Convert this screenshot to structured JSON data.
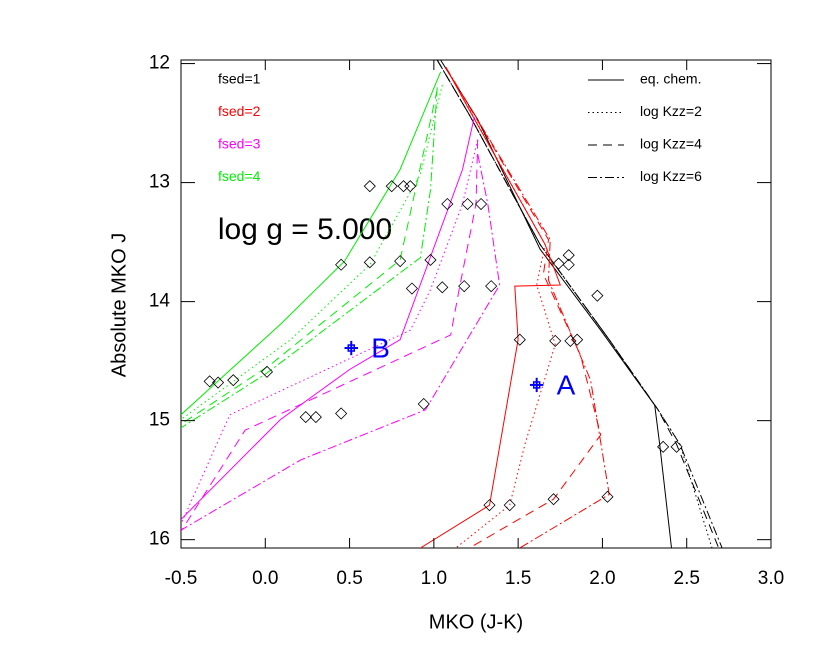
{
  "chart_data": {
    "type": "line",
    "x_label": "MKO (J-K)",
    "y_label": "Absolute MKO J",
    "annotation": "log g = 5.000",
    "xlim": [
      -0.5,
      3.0
    ],
    "ylim": [
      11.97,
      16.07
    ],
    "y_inverted": true,
    "xticks": [
      -0.5,
      {
        "value": 0,
        "label": "0.0"
      },
      0.5,
      {
        "value": 1,
        "label": "1.0"
      },
      1.5,
      {
        "value": 2,
        "label": "2.0"
      },
      2.5,
      {
        "value": 3,
        "label": "3.0"
      }
    ],
    "yticks": [
      12,
      13,
      14,
      15,
      16
    ],
    "color_legend": [
      {
        "label": "fsed=1",
        "color": "#000000"
      },
      {
        "label": "fsed=2",
        "color": "#ff0000"
      },
      {
        "label": "fsed=3",
        "color": "#ff00ff"
      },
      {
        "label": "fsed=4",
        "color": "#00ee00"
      }
    ],
    "style_legend": [
      {
        "label": "eq. chem.",
        "dash": "solid"
      },
      {
        "label": "log Kzz=2",
        "dash": "dotted"
      },
      {
        "label": "log Kzz=4",
        "dash": "dashed"
      },
      {
        "label": "log Kzz=6",
        "dash": "dashdot"
      }
    ],
    "series": [
      {
        "color": "#000000",
        "dash": "solid",
        "x": [
          1.04,
          1.26,
          1.63,
          1.99,
          2.31,
          2.34,
          2.41
        ],
        "y": [
          11.97,
          12.47,
          13.56,
          14.24,
          14.87,
          15.2,
          16.07
        ]
      },
      {
        "color": "#000000",
        "dash": "dotted",
        "x": [
          1.02,
          1.21,
          1.63,
          2.04,
          2.33,
          2.46,
          2.65
        ],
        "y": [
          11.97,
          12.43,
          13.52,
          14.32,
          14.91,
          15.2,
          16.07
        ]
      },
      {
        "color": "#000000",
        "dash": "dashed",
        "x": [
          1.02,
          1.21,
          1.63,
          2.04,
          2.33,
          2.44,
          2.69
        ],
        "y": [
          11.97,
          12.43,
          13.52,
          14.32,
          14.91,
          15.2,
          16.07
        ]
      },
      {
        "color": "#000000",
        "dash": "dashdot",
        "x": [
          1.02,
          1.21,
          1.63,
          2.04,
          2.33,
          2.46,
          2.71
        ],
        "y": [
          11.97,
          12.43,
          13.52,
          14.32,
          14.91,
          15.2,
          16.07
        ]
      },
      {
        "color": "#ff0000",
        "dash": "solid",
        "x": [
          1.07,
          1.21,
          1.66,
          1.75,
          1.48,
          1.5,
          1.33,
          0.92
        ],
        "y": [
          12.03,
          12.39,
          13.52,
          13.86,
          13.87,
          14.32,
          15.71,
          16.07
        ]
      },
      {
        "color": "#ff0000",
        "dash": "dotted",
        "x": [
          1.07,
          1.66,
          1.61,
          1.72,
          1.54,
          1.45,
          1.13
        ],
        "y": [
          12.03,
          13.52,
          13.86,
          14.36,
          15.2,
          15.71,
          16.07
        ]
      },
      {
        "color": "#ff0000",
        "dash": "dashed",
        "x": [
          1.07,
          1.68,
          1.65,
          1.87,
          1.99,
          1.71,
          1.21
        ],
        "y": [
          12.03,
          13.48,
          13.77,
          14.45,
          15.12,
          15.66,
          16.07
        ]
      },
      {
        "color": "#ff0000",
        "dash": "dashdot",
        "x": [
          1.07,
          1.69,
          1.68,
          1.93,
          2.04,
          1.51
        ],
        "y": [
          12.03,
          13.48,
          13.82,
          14.66,
          15.62,
          16.07
        ]
      },
      {
        "color": "#ff00ff",
        "dash": "solid",
        "x": [
          1.24,
          1.17,
          0.8,
          0.5,
          0.09,
          -0.5
        ],
        "y": [
          12.45,
          12.89,
          14.32,
          14.57,
          14.99,
          15.83
        ]
      },
      {
        "color": "#ff00ff",
        "dash": "dotted",
        "x": [
          1.26,
          1.17,
          0.98,
          0.86,
          -0.21,
          -0.5
        ],
        "y": [
          12.64,
          13.18,
          13.9,
          14.24,
          14.95,
          15.87
        ]
      },
      {
        "color": "#ff00ff",
        "dash": "dashed",
        "x": [
          1.26,
          1.25,
          1.15,
          1.1,
          -0.12,
          -0.5
        ],
        "y": [
          12.64,
          13.18,
          13.9,
          14.28,
          15.08,
          15.93
        ]
      },
      {
        "color": "#ff00ff",
        "dash": "dashdot",
        "x": [
          1.26,
          1.32,
          1.39,
          0.95,
          0.21,
          -0.5
        ],
        "y": [
          12.76,
          13.18,
          13.86,
          14.91,
          15.33,
          15.92
        ]
      },
      {
        "color": "#00ee00",
        "dash": "solid",
        "x": [
          1.04,
          0.8,
          0.47,
          0.09,
          -0.5
        ],
        "y": [
          12.07,
          12.89,
          13.66,
          14.19,
          14.95
        ]
      },
      {
        "color": "#00ee00",
        "dash": "dotted",
        "x": [
          1.05,
          0.92,
          0.62,
          0.15,
          -0.5
        ],
        "y": [
          12.18,
          12.93,
          13.69,
          14.32,
          14.99
        ]
      },
      {
        "color": "#00ee00",
        "dash": "dashed",
        "x": [
          1.02,
          0.8,
          0.03,
          -0.5
        ],
        "y": [
          12.22,
          13.65,
          14.53,
          15.03
        ]
      },
      {
        "color": "#00ee00",
        "dash": "dashdot",
        "x": [
          1.02,
          0.98,
          0.92,
          0.0,
          -0.5
        ],
        "y": [
          12.2,
          13.06,
          13.63,
          14.61,
          15.06
        ]
      }
    ],
    "diamonds": {
      "x": [
        0.62,
        0.75,
        0.82,
        0.86,
        1.08,
        1.2,
        1.28,
        0.45,
        0.62,
        0.8,
        0.98,
        0.87,
        1.05,
        1.18,
        1.34,
        1.8,
        1.74,
        1.8,
        1.97,
        1.51,
        1.72,
        1.81,
        1.85,
        -0.33,
        -0.28,
        -0.19,
        0.01,
        0.24,
        0.3,
        0.45,
        0.94,
        1.33,
        1.45,
        1.71,
        2.03,
        2.36,
        2.44
      ],
      "y": [
        13.03,
        13.03,
        13.03,
        13.03,
        13.18,
        13.18,
        13.18,
        13.69,
        13.67,
        13.66,
        13.65,
        13.89,
        13.88,
        13.87,
        13.87,
        13.61,
        13.68,
        13.69,
        13.95,
        14.32,
        14.33,
        14.33,
        14.32,
        14.67,
        14.68,
        14.66,
        14.59,
        14.97,
        14.97,
        14.94,
        14.86,
        15.71,
        15.71,
        15.66,
        15.64,
        15.22,
        15.22
      ]
    },
    "observations": [
      {
        "label": "B",
        "x": 0.51,
        "y": 14.39,
        "xerr": 0.04,
        "yerr": 0.06,
        "color": "#0000ff"
      },
      {
        "label": "A",
        "x": 1.61,
        "y": 14.7,
        "xerr": 0.04,
        "yerr": 0.06,
        "color": "#0000ff"
      }
    ]
  }
}
